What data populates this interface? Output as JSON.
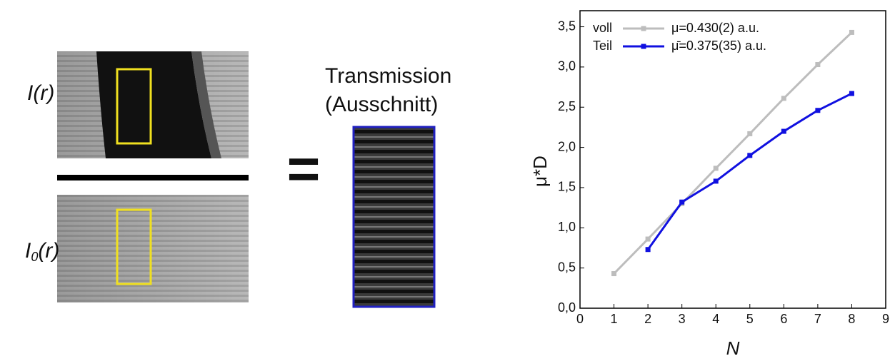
{
  "left": {
    "top_label": "I(r)",
    "bottom_label": {
      "base": "I",
      "sub": "0",
      "rest": "(r)"
    },
    "equals": "=",
    "transmission": [
      "Transmission",
      "(Ausschnitt)"
    ]
  },
  "chart_data": {
    "type": "line",
    "x_label": "N",
    "y_label": "μ*D",
    "x": [
      1,
      2,
      3,
      4,
      5,
      6,
      7,
      8
    ],
    "series": [
      {
        "name": "voll",
        "note": "μ=0.430(2)  a.u.",
        "color": "#bdbdbd",
        "values": [
          0.43,
          0.86,
          1.3,
          1.74,
          2.17,
          2.61,
          3.03,
          3.43
        ]
      },
      {
        "name": "Teil",
        "note": "μ̄=0.375(35) a.u.",
        "color": "#1010e0",
        "values": [
          null,
          0.73,
          1.32,
          1.58,
          1.9,
          2.2,
          2.46,
          2.67
        ]
      }
    ],
    "xlim": [
      0,
      9
    ],
    "xticks": [
      0,
      1,
      2,
      3,
      4,
      5,
      6,
      7,
      8,
      9
    ],
    "ylim": [
      0,
      3.7
    ],
    "yticks": [
      {
        "value": 0,
        "label": "0,0"
      },
      {
        "value": 0.5,
        "label": "0,5"
      },
      {
        "value": 1,
        "label": "1,0"
      },
      {
        "value": 1.5,
        "label": "1,5"
      },
      {
        "value": 2,
        "label": "2,0"
      },
      {
        "value": 2.5,
        "label": "2,5"
      },
      {
        "value": 3,
        "label": "3,0"
      },
      {
        "value": 3.5,
        "label": "3,5"
      }
    ],
    "grid": false
  }
}
